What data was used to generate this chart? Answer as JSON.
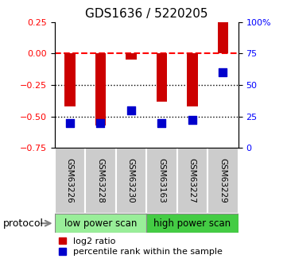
{
  "title": "GDS1636 / 5220205",
  "samples": [
    "GSM63226",
    "GSM63228",
    "GSM63230",
    "GSM63163",
    "GSM63227",
    "GSM63229"
  ],
  "log2_ratio": [
    -0.42,
    -0.57,
    -0.05,
    -0.38,
    -0.42,
    0.25
  ],
  "percentile_rank": [
    20,
    20,
    30,
    20,
    22,
    60
  ],
  "ylim_left": [
    -0.75,
    0.25
  ],
  "ylim_right": [
    0,
    100
  ],
  "yticks_left": [
    0.25,
    0.0,
    -0.25,
    -0.5,
    -0.75
  ],
  "yticks_right": [
    100,
    75,
    50,
    25,
    0
  ],
  "ytick_right_labels": [
    "100%",
    "75",
    "50",
    "25",
    "0"
  ],
  "hlines": [
    0.0,
    -0.25,
    -0.5
  ],
  "hline_styles": [
    "dashed",
    "dotted",
    "dotted"
  ],
  "hline_colors": [
    "red",
    "black",
    "black"
  ],
  "bar_color": "#cc0000",
  "dot_color": "#0000cc",
  "protocol_groups": [
    {
      "label": "low power scan",
      "start": 0,
      "end": 3,
      "color": "#99ee99"
    },
    {
      "label": "high power scan",
      "start": 3,
      "end": 6,
      "color": "#44cc44"
    }
  ],
  "protocol_label": "protocol",
  "legend_items": [
    "log2 ratio",
    "percentile rank within the sample"
  ],
  "bar_width": 0.35,
  "dot_size": 45,
  "tick_label_color_left": "red",
  "tick_label_color_right": "blue",
  "sample_box_color": "#cccccc"
}
